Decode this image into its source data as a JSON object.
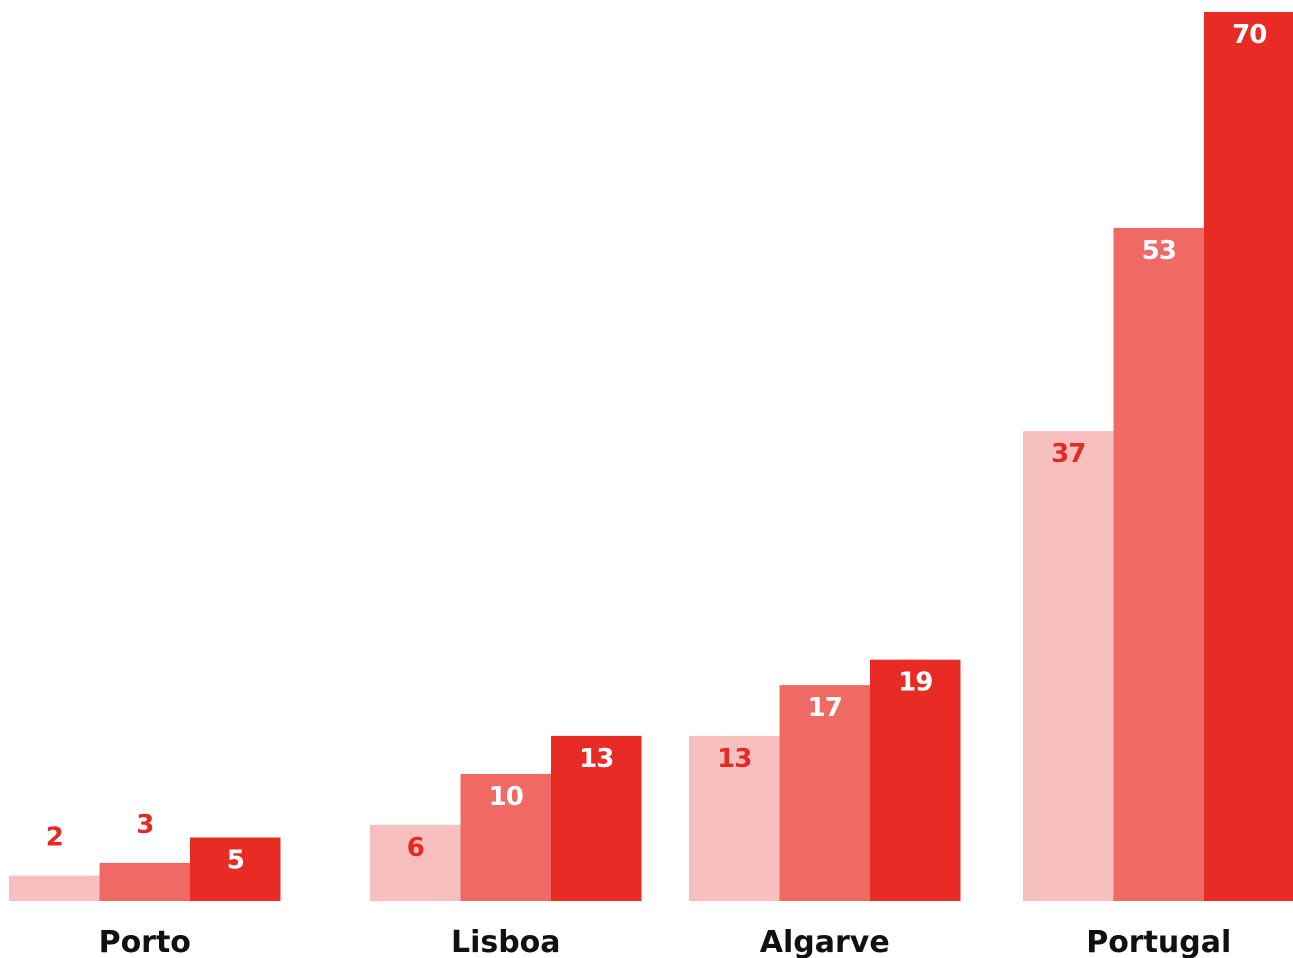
{
  "chart_data": {
    "type": "bar",
    "categories": [
      "Porto",
      "Lisboa",
      "Algarve",
      "Portugal"
    ],
    "series": [
      {
        "values": [
          2,
          6,
          13,
          37
        ],
        "color": "#f7c0be",
        "label_color": "#e52a25"
      },
      {
        "values": [
          3,
          10,
          17,
          53
        ],
        "color": "#f06a65",
        "label_color": "#ffffff"
      },
      {
        "values": [
          5,
          13,
          19,
          70
        ],
        "color": "#e82c25",
        "label_color": "#ffffff"
      }
    ],
    "ylim": [
      0,
      70
    ],
    "grid": false,
    "legend": "none",
    "title": "",
    "xlabel": "",
    "ylabel": ""
  }
}
